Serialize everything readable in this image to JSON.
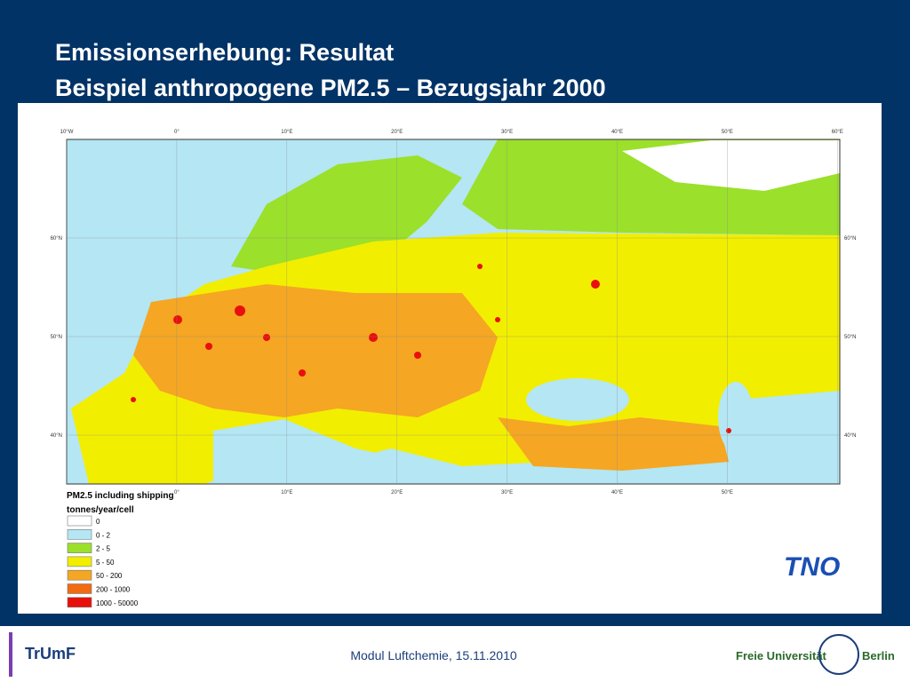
{
  "header": {
    "title_line1": "Emissionserhebung: Resultat",
    "title_line2": "Beispiel anthropogene PM2.5 – Bezugsjahr 2000"
  },
  "map": {
    "top_labels": [
      "10°W",
      "0°",
      "10°E",
      "20°E",
      "30°E",
      "40°E",
      "50°E",
      "60°E"
    ],
    "bottom_labels": [
      "0°",
      "10°E",
      "20°E",
      "30°E",
      "40°E",
      "50°E"
    ],
    "left_labels": [
      "60°N",
      "50°N",
      "40°N"
    ],
    "right_labels": [
      "60°N",
      "50°N",
      "40°N"
    ]
  },
  "legend": {
    "title": "PM2.5 including shipping",
    "unit": "tonnes/year/cell",
    "items": [
      {
        "label": "0",
        "color": "#ffffff"
      },
      {
        "label": "0 - 2",
        "color": "#b4e6f4"
      },
      {
        "label": "2 - 5",
        "color": "#9be02a"
      },
      {
        "label": "5 - 50",
        "color": "#f2ee00"
      },
      {
        "label": "50 - 200",
        "color": "#f5a623"
      },
      {
        "label": "200 - 1000",
        "color": "#f26a12"
      },
      {
        "label": "1000 - 50000",
        "color": "#e8100c"
      }
    ]
  },
  "logos": {
    "tno": "TNO"
  },
  "footer": {
    "left_logo": "TrUmF",
    "text": "Modul Luftchemie, 15.11.2010",
    "right_logo_1": "Freie Universität",
    "right_logo_2": "Berlin"
  }
}
